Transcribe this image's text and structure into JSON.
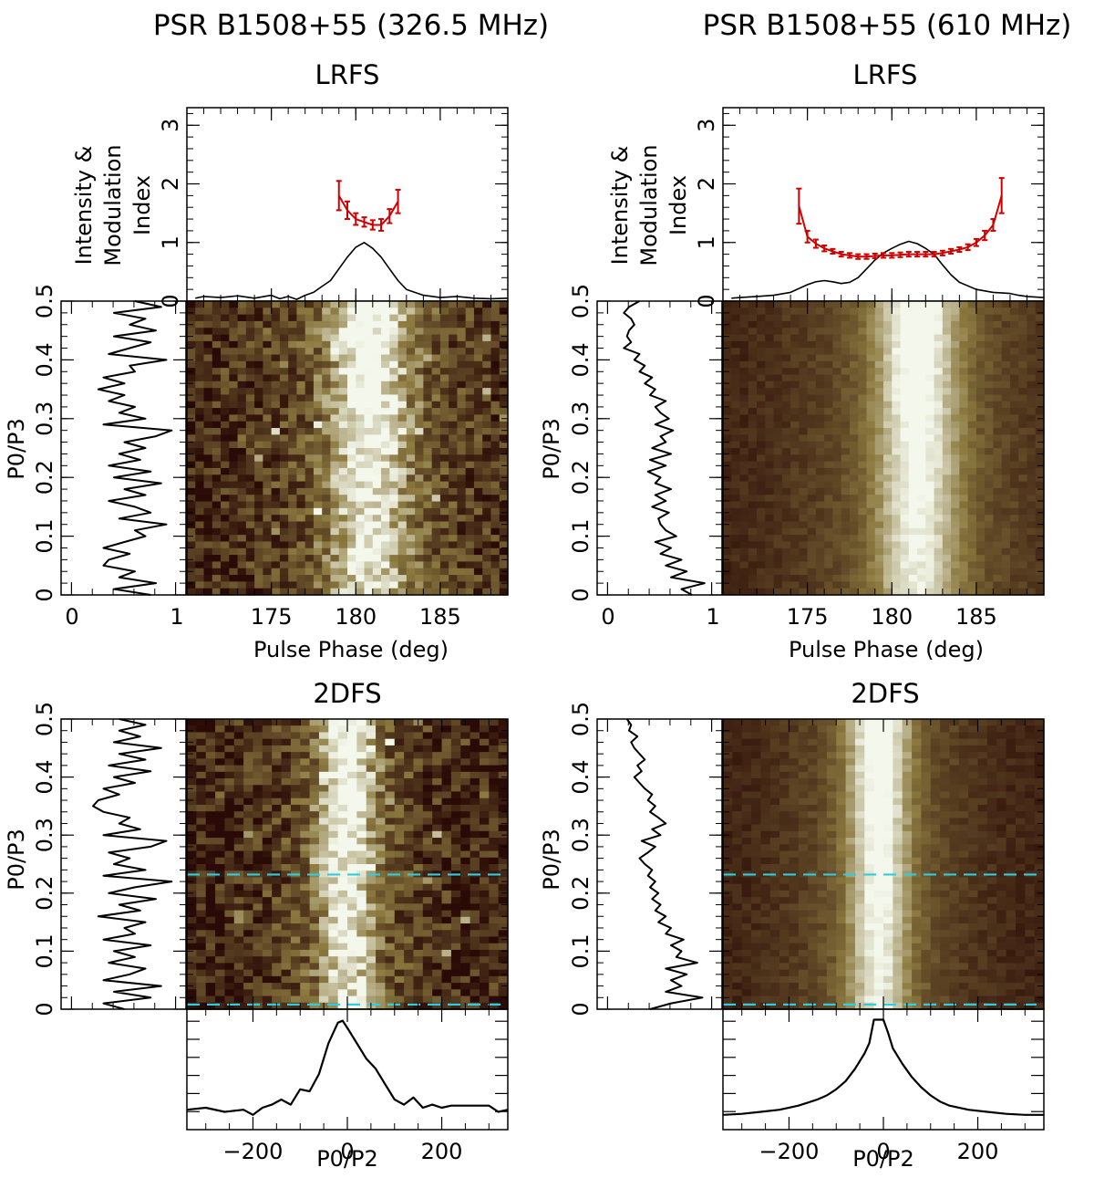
{
  "panels": [
    {
      "id": "left",
      "title": "PSR B1508+55 (326.5 MHz)",
      "lrfs_label": "LRFS",
      "twodfs_label": "2DFS",
      "profile_ylabel": [
        "Intensity &",
        "Modulation",
        "Index"
      ],
      "pulse_phase_xlabel": "Pulse Phase (deg)",
      "p3_ylabel": "P0/P3",
      "p2_xlabel": "P0/P2",
      "noise_level": 0.9
    },
    {
      "id": "right",
      "title": "PSR B1508+55 (610 MHz)",
      "lrfs_label": "LRFS",
      "twodfs_label": "2DFS",
      "profile_ylabel": [
        "Intensity &",
        "Modulation",
        "Index"
      ],
      "pulse_phase_xlabel": "Pulse Phase (deg)",
      "p3_ylabel": "P0/P3",
      "p2_xlabel": "P0/P2",
      "noise_level": 0.25
    }
  ],
  "colors": {
    "profile": "#000000",
    "modulation_index": "#cc0000",
    "cursor_lines": "#33ccdd",
    "map_low": "#2a0a06",
    "map_mid": "#8c7a40",
    "map_high": "#f4f8ec"
  },
  "chart_data": [
    {
      "type": "line",
      "name": "LRFS profile 326.5 MHz",
      "x_range": [
        170,
        189
      ],
      "ylim": [
        0,
        3.3
      ],
      "yticks": [
        0,
        1,
        2,
        3
      ],
      "xticks": [
        175,
        180,
        185
      ],
      "intensity": {
        "x": [
          170.5,
          171,
          172,
          173,
          174,
          175,
          175.5,
          176,
          176.5,
          177,
          177.5,
          178,
          178.5,
          179,
          179.5,
          180,
          180.5,
          181,
          181.5,
          182,
          182.5,
          183,
          184,
          185,
          186,
          187,
          188,
          189
        ],
        "y": [
          0.05,
          0.08,
          0.06,
          0.09,
          0.05,
          0.1,
          0.04,
          0.08,
          0.03,
          0.1,
          0.15,
          0.25,
          0.35,
          0.55,
          0.75,
          0.92,
          1.0,
          0.9,
          0.75,
          0.55,
          0.35,
          0.2,
          0.1,
          0.06,
          0.08,
          0.05,
          0.04,
          0.05
        ]
      },
      "modulation_index": {
        "x": [
          179,
          179.5,
          180,
          180.5,
          181,
          181.5,
          182,
          182.5
        ],
        "y": [
          1.8,
          1.55,
          1.4,
          1.35,
          1.3,
          1.3,
          1.45,
          1.7
        ],
        "err": [
          0.25,
          0.15,
          0.1,
          0.08,
          0.08,
          0.1,
          0.12,
          0.2
        ]
      }
    },
    {
      "type": "line",
      "name": "LRFS profile 610 MHz",
      "x_range": [
        170,
        189
      ],
      "ylim": [
        0,
        3.3
      ],
      "yticks": [
        0,
        1,
        2,
        3
      ],
      "xticks": [
        175,
        180,
        185
      ],
      "intensity": {
        "x": [
          170.5,
          171,
          172,
          173,
          174,
          175,
          175.5,
          176,
          176.5,
          177,
          177.5,
          178,
          178.5,
          179,
          179.5,
          180,
          180.5,
          181,
          181.5,
          182,
          182.5,
          183,
          183.5,
          184,
          185,
          186,
          187,
          187.5,
          188,
          189
        ],
        "y": [
          0.05,
          0.06,
          0.08,
          0.1,
          0.15,
          0.28,
          0.33,
          0.35,
          0.33,
          0.3,
          0.32,
          0.4,
          0.55,
          0.7,
          0.82,
          0.9,
          0.97,
          1.02,
          0.98,
          0.9,
          0.8,
          0.62,
          0.45,
          0.32,
          0.2,
          0.15,
          0.13,
          0.1,
          0.08,
          0.06
        ]
      },
      "modulation_index": {
        "x": [
          174.5,
          175,
          175.5,
          176,
          176.5,
          177,
          177.5,
          178,
          178.5,
          179,
          179.5,
          180,
          180.5,
          181,
          181.5,
          182,
          182.5,
          183,
          183.5,
          184,
          184.5,
          185,
          185.5,
          186,
          186.5
        ],
        "y": [
          1.62,
          1.1,
          0.98,
          0.9,
          0.85,
          0.8,
          0.78,
          0.76,
          0.76,
          0.77,
          0.78,
          0.78,
          0.79,
          0.8,
          0.8,
          0.8,
          0.8,
          0.82,
          0.85,
          0.88,
          0.92,
          1.0,
          1.12,
          1.3,
          1.8
        ],
        "err": [
          0.3,
          0.1,
          0.07,
          0.05,
          0.04,
          0.04,
          0.04,
          0.04,
          0.04,
          0.04,
          0.04,
          0.04,
          0.04,
          0.04,
          0.04,
          0.04,
          0.04,
          0.04,
          0.04,
          0.04,
          0.05,
          0.06,
          0.08,
          0.1,
          0.3
        ]
      }
    },
    {
      "type": "heatmap",
      "name": "LRFS 326.5 MHz",
      "x_range": [
        170,
        189
      ],
      "ylim": [
        0,
        0.5
      ],
      "yticks": [
        0,
        0.1,
        0.2,
        0.3,
        0.4,
        0.5
      ],
      "xticks": [
        175,
        180,
        185
      ],
      "n_x": 38,
      "n_y": 44,
      "ridge_center": 180.8,
      "ridge_width": 1.6,
      "side_spectrum": {
        "y": [
          0,
          0.01,
          0.02,
          0.03,
          0.04,
          0.05,
          0.06,
          0.07,
          0.08,
          0.09,
          0.1,
          0.11,
          0.12,
          0.13,
          0.14,
          0.15,
          0.16,
          0.17,
          0.18,
          0.19,
          0.2,
          0.21,
          0.22,
          0.23,
          0.24,
          0.25,
          0.26,
          0.27,
          0.28,
          0.29,
          0.3,
          0.31,
          0.32,
          0.33,
          0.34,
          0.35,
          0.36,
          0.37,
          0.38,
          0.39,
          0.4,
          0.41,
          0.42,
          0.43,
          0.44,
          0.45,
          0.46,
          0.47,
          0.48,
          0.49,
          0.5
        ],
        "x": [
          0.75,
          0.4,
          0.8,
          0.45,
          0.6,
          0.3,
          0.35,
          0.55,
          0.3,
          0.5,
          0.7,
          0.6,
          0.9,
          0.45,
          0.75,
          0.6,
          0.35,
          0.7,
          0.5,
          0.85,
          0.4,
          0.75,
          0.35,
          0.65,
          0.45,
          0.7,
          0.5,
          0.8,
          0.95,
          0.3,
          0.7,
          0.45,
          0.6,
          0.35,
          0.5,
          0.25,
          0.5,
          0.3,
          0.6,
          0.55,
          0.9,
          0.35,
          0.55,
          0.75,
          0.4,
          0.8,
          0.55,
          0.7,
          0.4,
          0.85,
          0.6
        ]
      }
    },
    {
      "type": "heatmap",
      "name": "LRFS 610 MHz",
      "x_range": [
        170,
        189
      ],
      "ylim": [
        0,
        0.5
      ],
      "yticks": [
        0,
        0.1,
        0.2,
        0.3,
        0.4,
        0.5
      ],
      "xticks": [
        175,
        180,
        185
      ],
      "n_x": 38,
      "n_y": 44,
      "ridge_center": 181.5,
      "ridge_width": 1.7,
      "side_spectrum": {
        "y": [
          0,
          0.01,
          0.02,
          0.03,
          0.04,
          0.05,
          0.06,
          0.07,
          0.08,
          0.09,
          0.1,
          0.11,
          0.12,
          0.13,
          0.14,
          0.15,
          0.16,
          0.17,
          0.18,
          0.19,
          0.2,
          0.21,
          0.22,
          0.23,
          0.24,
          0.25,
          0.26,
          0.27,
          0.28,
          0.29,
          0.3,
          0.31,
          0.32,
          0.33,
          0.34,
          0.35,
          0.36,
          0.37,
          0.38,
          0.39,
          0.4,
          0.41,
          0.42,
          0.43,
          0.44,
          0.45,
          0.46,
          0.47,
          0.48,
          0.49,
          0.5
        ],
        "x": [
          0.8,
          0.7,
          0.92,
          0.6,
          0.75,
          0.55,
          0.7,
          0.5,
          0.6,
          0.45,
          0.65,
          0.55,
          0.5,
          0.48,
          0.58,
          0.42,
          0.55,
          0.45,
          0.6,
          0.45,
          0.5,
          0.38,
          0.55,
          0.4,
          0.6,
          0.42,
          0.55,
          0.5,
          0.62,
          0.45,
          0.58,
          0.5,
          0.45,
          0.55,
          0.4,
          0.45,
          0.35,
          0.42,
          0.3,
          0.35,
          0.25,
          0.3,
          0.15,
          0.22,
          0.18,
          0.2,
          0.25,
          0.22,
          0.15,
          0.2,
          0.3
        ]
      }
    },
    {
      "type": "heatmap",
      "name": "2DFS 326.5 MHz",
      "x_range": [
        -340,
        340
      ],
      "ylim": [
        0,
        0.5
      ],
      "yticks": [
        0,
        0.1,
        0.2,
        0.3,
        0.4,
        0.5
      ],
      "xticks": [
        -200,
        0,
        200
      ],
      "n_x": 34,
      "n_y": 44,
      "ridge_center": 0,
      "ridge_width": 40,
      "cursor_lines_y": [
        0.232,
        0.008
      ],
      "side_spectrum": {
        "y": [
          0,
          0.01,
          0.02,
          0.03,
          0.04,
          0.05,
          0.06,
          0.07,
          0.08,
          0.09,
          0.1,
          0.11,
          0.12,
          0.13,
          0.14,
          0.15,
          0.16,
          0.17,
          0.18,
          0.19,
          0.2,
          0.21,
          0.22,
          0.23,
          0.24,
          0.25,
          0.26,
          0.27,
          0.28,
          0.29,
          0.3,
          0.31,
          0.32,
          0.33,
          0.34,
          0.35,
          0.36,
          0.37,
          0.38,
          0.39,
          0.4,
          0.41,
          0.42,
          0.43,
          0.44,
          0.45,
          0.46,
          0.47,
          0.48,
          0.49,
          0.5
        ],
        "x": [
          0.5,
          0.3,
          0.75,
          0.4,
          0.85,
          0.3,
          0.55,
          0.7,
          0.35,
          0.6,
          0.4,
          0.75,
          0.3,
          0.6,
          0.5,
          0.7,
          0.25,
          0.65,
          0.45,
          0.8,
          0.35,
          0.6,
          0.95,
          0.3,
          0.7,
          0.4,
          0.55,
          0.35,
          0.75,
          0.9,
          0.3,
          0.65,
          0.45,
          0.55,
          0.3,
          0.2,
          0.25,
          0.45,
          0.3,
          0.6,
          0.4,
          0.75,
          0.35,
          0.7,
          0.45,
          0.85,
          0.4,
          0.65,
          0.45,
          0.7,
          0.45
        ]
      },
      "bottom_profile": {
        "x": [
          -340,
          -300,
          -260,
          -220,
          -200,
          -180,
          -160,
          -140,
          -120,
          -100,
          -80,
          -60,
          -40,
          -20,
          -10,
          0,
          20,
          40,
          60,
          80,
          100,
          120,
          140,
          160,
          180,
          200,
          220,
          260,
          300,
          320,
          340
        ],
        "y": [
          0.1,
          0.12,
          0.08,
          0.1,
          0.05,
          0.12,
          0.15,
          0.2,
          0.15,
          0.3,
          0.28,
          0.45,
          0.75,
          0.95,
          0.97,
          0.9,
          0.75,
          0.6,
          0.5,
          0.35,
          0.2,
          0.15,
          0.22,
          0.12,
          0.15,
          0.12,
          0.14,
          0.14,
          0.14,
          0.08,
          0.1
        ]
      }
    },
    {
      "type": "heatmap",
      "name": "2DFS 610 MHz",
      "x_range": [
        -340,
        340
      ],
      "ylim": [
        0,
        0.5
      ],
      "yticks": [
        0,
        0.1,
        0.2,
        0.3,
        0.4,
        0.5
      ],
      "xticks": [
        -200,
        0,
        200
      ],
      "n_x": 34,
      "n_y": 44,
      "ridge_center": -10,
      "ridge_width": 45,
      "cursor_lines_y": [
        0.232,
        0.008
      ],
      "side_spectrum": {
        "y": [
          0,
          0.01,
          0.02,
          0.03,
          0.04,
          0.05,
          0.06,
          0.07,
          0.08,
          0.09,
          0.1,
          0.11,
          0.12,
          0.13,
          0.14,
          0.15,
          0.16,
          0.17,
          0.18,
          0.19,
          0.2,
          0.21,
          0.22,
          0.23,
          0.24,
          0.25,
          0.26,
          0.27,
          0.28,
          0.29,
          0.3,
          0.31,
          0.32,
          0.33,
          0.34,
          0.35,
          0.36,
          0.37,
          0.38,
          0.39,
          0.4,
          0.41,
          0.42,
          0.43,
          0.44,
          0.45,
          0.46,
          0.47,
          0.48,
          0.49,
          0.5
        ],
        "x": [
          0.4,
          0.6,
          0.9,
          0.55,
          0.7,
          0.6,
          0.75,
          0.55,
          0.85,
          0.65,
          0.7,
          0.6,
          0.72,
          0.55,
          0.6,
          0.48,
          0.55,
          0.45,
          0.5,
          0.42,
          0.48,
          0.4,
          0.45,
          0.38,
          0.42,
          0.35,
          0.3,
          0.38,
          0.45,
          0.32,
          0.5,
          0.42,
          0.55,
          0.48,
          0.4,
          0.45,
          0.38,
          0.42,
          0.35,
          0.3,
          0.25,
          0.32,
          0.28,
          0.35,
          0.3,
          0.25,
          0.22,
          0.28,
          0.2,
          0.22,
          0.18
        ]
      },
      "bottom_profile": {
        "x": [
          -340,
          -300,
          -260,
          -220,
          -180,
          -140,
          -120,
          -100,
          -80,
          -60,
          -40,
          -30,
          -20,
          0,
          10,
          20,
          40,
          60,
          80,
          100,
          120,
          140,
          180,
          220,
          260,
          300,
          340
        ],
        "y": [
          0.05,
          0.06,
          0.08,
          0.1,
          0.14,
          0.2,
          0.24,
          0.3,
          0.38,
          0.5,
          0.65,
          0.75,
          0.98,
          0.98,
          0.85,
          0.7,
          0.55,
          0.42,
          0.32,
          0.24,
          0.18,
          0.14,
          0.1,
          0.08,
          0.06,
          0.05,
          0.05
        ]
      }
    }
  ]
}
